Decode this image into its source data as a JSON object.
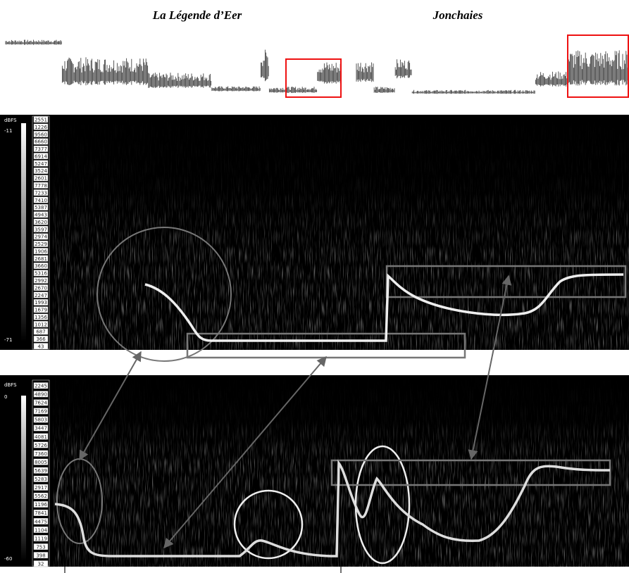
{
  "titles": [
    "La Légende d’Eer",
    "Jonchaies"
  ],
  "top_panel": {
    "unit": "dBFS",
    "db_max": "-11",
    "db_min": "-71",
    "freq_labels": [
      "2551",
      "1226",
      "9560",
      "6660",
      "7377",
      "6914",
      "5247",
      "3524",
      "2601",
      "7778",
      "7233",
      "7410",
      "5387",
      "4943",
      "3620",
      "3597",
      "2974",
      "2529",
      "1906",
      "2681",
      "3660",
      "5316",
      "2992",
      "2670",
      "2247",
      "1993",
      "1679",
      "1356",
      "1012",
      "687",
      "366",
      "43"
    ]
  },
  "bottom_panel": {
    "unit": "dBFS",
    "db_max": "0",
    "db_min": "-60",
    "freq_labels": [
      "2245",
      "4890",
      "7624",
      "7169",
      "5803",
      "3447",
      "4081",
      "5726",
      "7360",
      "8005",
      "5639",
      "5283",
      "2917",
      "5562",
      "1196",
      "7841",
      "4475",
      "1104",
      "1119",
      "753",
      "398",
      "32"
    ]
  }
}
